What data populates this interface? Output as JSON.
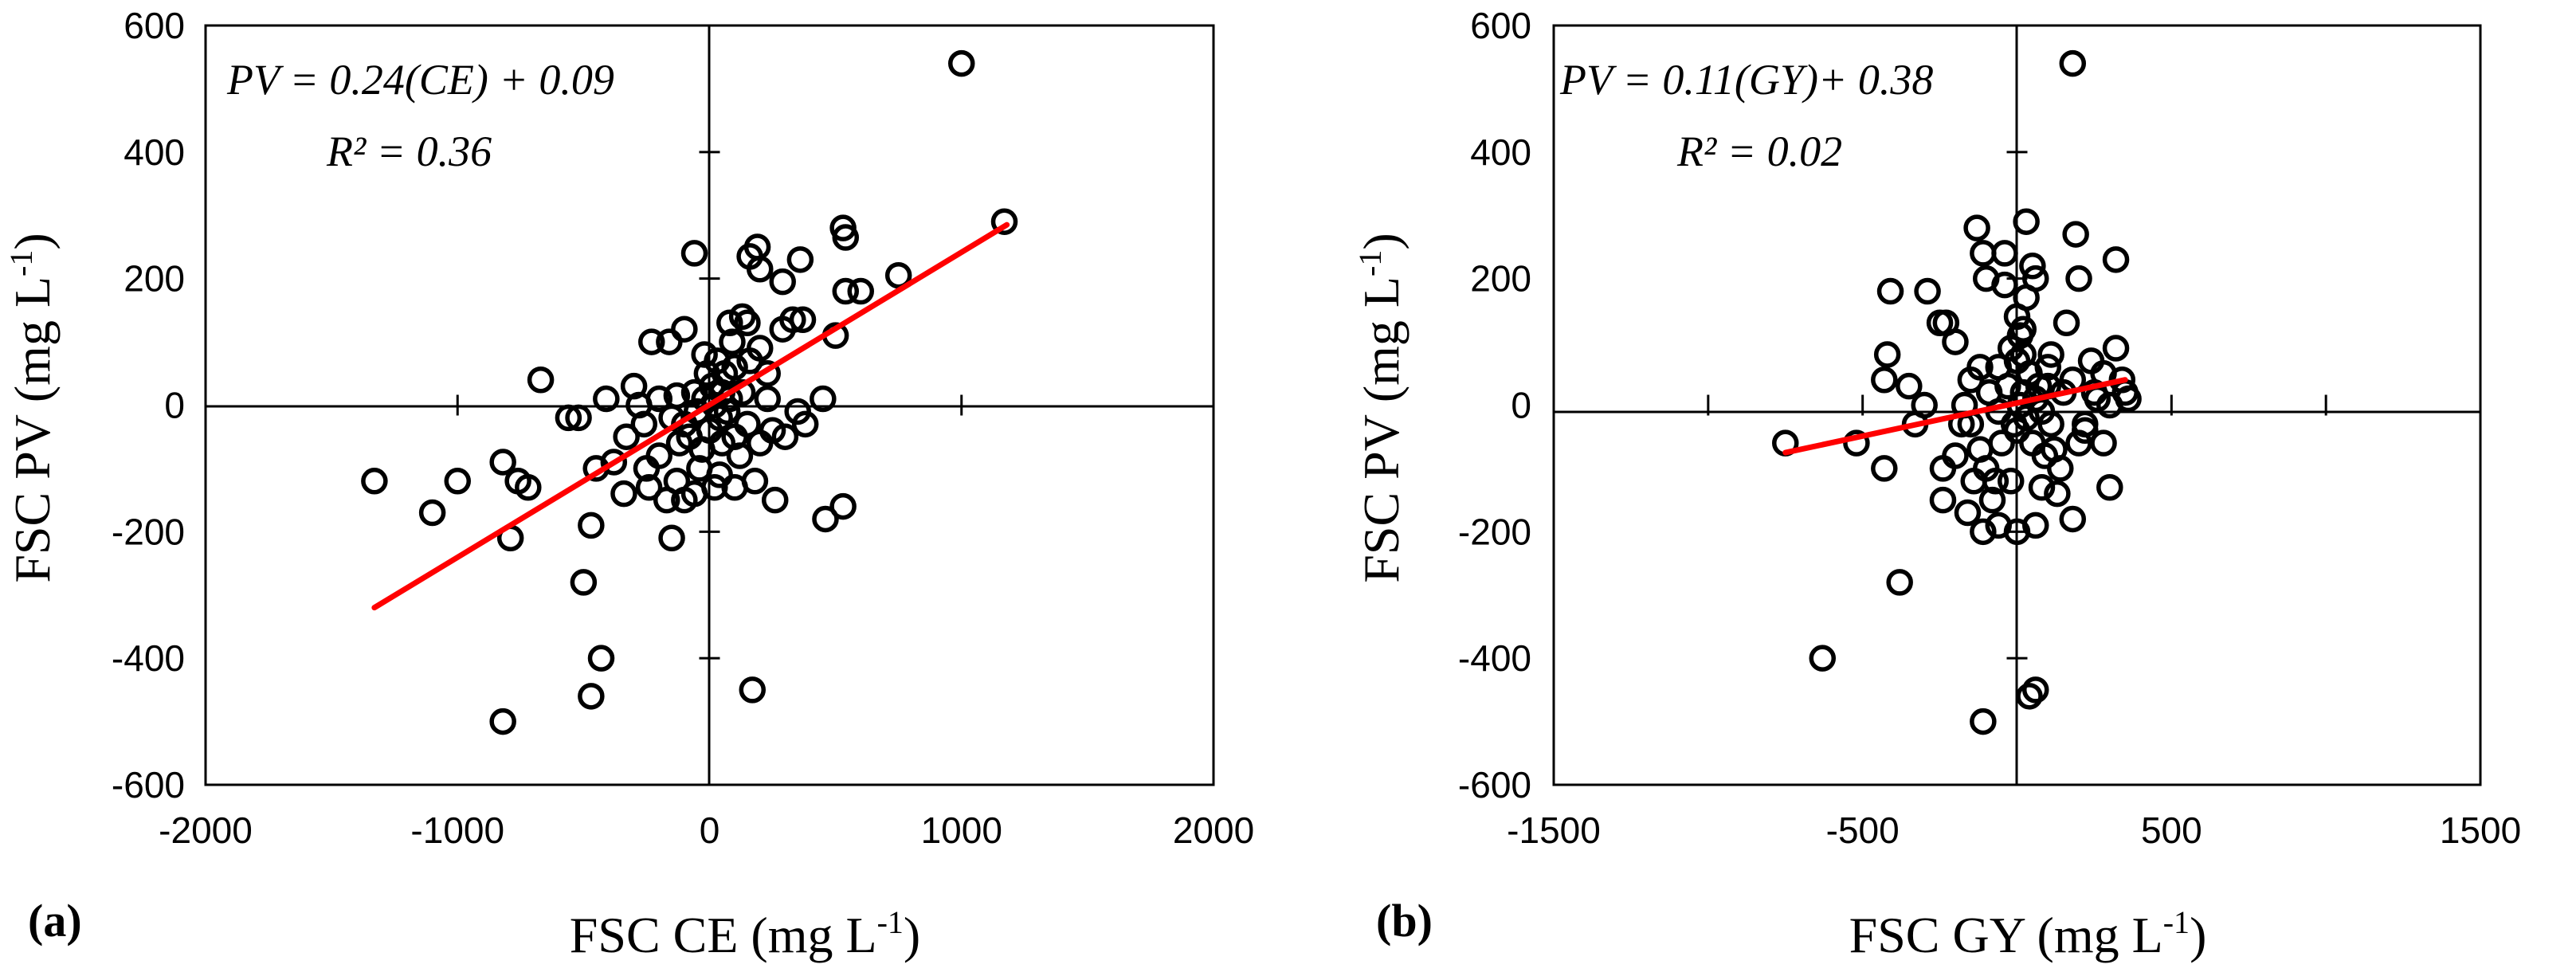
{
  "chart_data": [
    {
      "type": "scatter",
      "panel_label": "(a)",
      "xlabel": "FSC CE (mg L",
      "xlabel_sup": "-1",
      "xlabel_end": ")",
      "ylabel": "FSC PV (mg L",
      "ylabel_sup": "-1",
      "ylabel_end": ")",
      "xlim": [
        -2000,
        2000
      ],
      "ylim": [
        -600,
        600
      ],
      "x_ticks": [
        -2000,
        -1000,
        0,
        1000,
        2000
      ],
      "y_ticks": [
        -600,
        -400,
        -200,
        0,
        200,
        400,
        600
      ],
      "x_tick_labels": [
        "-2000",
        "-1000",
        "0",
        "1000",
        "2000"
      ],
      "y_tick_labels": [
        "-600",
        "-400",
        "-200",
        "0",
        "200",
        "400",
        "600"
      ],
      "equation": "PV = 0.24(CE) + 0.09",
      "r2_text": "R² = 0.36",
      "trendline": {
        "x": [
          -1330,
          1180
        ],
        "y": [
          -320,
          285
        ],
        "color": "#ff0000"
      },
      "points": [
        [
          1000,
          540
        ],
        [
          1170,
          290
        ],
        [
          530,
          280
        ],
        [
          540,
          265
        ],
        [
          750,
          205
        ],
        [
          600,
          180
        ],
        [
          540,
          180
        ],
        [
          500,
          110
        ],
        [
          -60,
          240
        ],
        [
          190,
          250
        ],
        [
          160,
          235
        ],
        [
          360,
          230
        ],
        [
          200,
          215
        ],
        [
          290,
          195
        ],
        [
          330,
          135
        ],
        [
          370,
          135
        ],
        [
          290,
          120
        ],
        [
          80,
          130
        ],
        [
          130,
          140
        ],
        [
          150,
          130
        ],
        [
          -230,
          100
        ],
        [
          -160,
          100
        ],
        [
          -100,
          120
        ],
        [
          -20,
          80
        ],
        [
          30,
          70
        ],
        [
          60,
          50
        ],
        [
          100,
          60
        ],
        [
          200,
          90
        ],
        [
          230,
          50
        ],
        [
          50,
          20
        ],
        [
          20,
          0
        ],
        [
          -20,
          10
        ],
        [
          80,
          10
        ],
        [
          130,
          20
        ],
        [
          -50,
          -10
        ],
        [
          -100,
          -30
        ],
        [
          -130,
          15
        ],
        [
          -200,
          10
        ],
        [
          -150,
          -20
        ],
        [
          -80,
          -50
        ],
        [
          0,
          -40
        ],
        [
          50,
          -60
        ],
        [
          100,
          -50
        ],
        [
          -30,
          -70
        ],
        [
          150,
          -30
        ],
        [
          200,
          -60
        ],
        [
          250,
          -40
        ],
        [
          -260,
          -30
        ],
        [
          -280,
          0
        ],
        [
          -410,
          10
        ],
        [
          -330,
          -50
        ],
        [
          -380,
          -90
        ],
        [
          -450,
          -100
        ],
        [
          -520,
          -20
        ],
        [
          -560,
          -20
        ],
        [
          -670,
          40
        ],
        [
          -720,
          -130
        ],
        [
          -760,
          -120
        ],
        [
          -820,
          -90
        ],
        [
          -1330,
          -120
        ],
        [
          -1000,
          -120
        ],
        [
          -1100,
          -170
        ],
        [
          -790,
          -210
        ],
        [
          -470,
          -190
        ],
        [
          -340,
          -140
        ],
        [
          -240,
          -130
        ],
        [
          -170,
          -150
        ],
        [
          -130,
          -120
        ],
        [
          -150,
          -210
        ],
        [
          -100,
          -150
        ],
        [
          -60,
          -140
        ],
        [
          40,
          -110
        ],
        [
          100,
          -130
        ],
        [
          180,
          -120
        ],
        [
          260,
          -150
        ],
        [
          350,
          -10
        ],
        [
          380,
          -30
        ],
        [
          450,
          10
        ],
        [
          460,
          -180
        ],
        [
          530,
          -160
        ],
        [
          -500,
          -280
        ],
        [
          -430,
          -400
        ],
        [
          -470,
          -460
        ],
        [
          -820,
          -500
        ],
        [
          170,
          -450
        ],
        [
          10,
          30
        ],
        [
          -10,
          50
        ],
        [
          40,
          -20
        ],
        [
          -60,
          20
        ],
        [
          70,
          -10
        ],
        [
          120,
          -80
        ],
        [
          -120,
          -60
        ],
        [
          90,
          100
        ],
        [
          160,
          70
        ],
        [
          -40,
          -100
        ],
        [
          20,
          -130
        ],
        [
          -200,
          -80
        ],
        [
          300,
          -50
        ],
        [
          230,
          10
        ],
        [
          -300,
          30
        ],
        [
          -250,
          -100
        ]
      ]
    },
    {
      "type": "scatter",
      "panel_label": "(b)",
      "xlabel": "FSC GY (mg L",
      "xlabel_sup": "-1",
      "xlabel_end": ")",
      "ylabel": "FSC PV (mg L",
      "ylabel_sup": "-1",
      "ylabel_end": ")",
      "xlim": [
        -1500,
        1500
      ],
      "ylim": [
        -600,
        600
      ],
      "x_ticks": [
        -1500,
        -500,
        500,
        1500
      ],
      "y_ticks": [
        -600,
        -400,
        -200,
        0,
        200,
        400,
        600
      ],
      "x_tick_labels": [
        "-1500",
        "-500",
        "500",
        "1500"
      ],
      "y_tick_labels": [
        "-600",
        "-400",
        "-200",
        "0",
        "200",
        "400",
        "600"
      ],
      "minor_x_ticks": [
        -1000,
        1000
      ],
      "equation": "PV = 0.11(GY)+ 0.38",
      "r2_text": "R² = 0.02",
      "trendline": {
        "x": [
          -750,
          350
        ],
        "y": [
          -75,
          40
        ],
        "color": "#ff0000"
      },
      "points": [
        [
          180,
          540
        ],
        [
          -630,
          -400
        ],
        [
          -750,
          -60
        ],
        [
          -520,
          -60
        ],
        [
          -420,
          80
        ],
        [
          -430,
          40
        ],
        [
          -430,
          -100
        ],
        [
          -410,
          180
        ],
        [
          -380,
          -280
        ],
        [
          -330,
          -30
        ],
        [
          -350,
          30
        ],
        [
          -300,
          0
        ],
        [
          -290,
          180
        ],
        [
          -250,
          130
        ],
        [
          -230,
          130
        ],
        [
          -240,
          -100
        ],
        [
          -240,
          -150
        ],
        [
          -200,
          100
        ],
        [
          -170,
          0
        ],
        [
          -150,
          -30
        ],
        [
          -140,
          -120
        ],
        [
          -120,
          60
        ],
        [
          -130,
          280
        ],
        [
          -110,
          240
        ],
        [
          -100,
          200
        ],
        [
          -80,
          -150
        ],
        [
          -60,
          -190
        ],
        [
          -40,
          190
        ],
        [
          -40,
          240
        ],
        [
          -20,
          -120
        ],
        [
          0,
          -40
        ],
        [
          10,
          0
        ],
        [
          20,
          80
        ],
        [
          20,
          120
        ],
        [
          30,
          170
        ],
        [
          30,
          290
        ],
        [
          50,
          220
        ],
        [
          60,
          200
        ],
        [
          60,
          10
        ],
        [
          50,
          -60
        ],
        [
          80,
          -10
        ],
        [
          100,
          60
        ],
        [
          100,
          30
        ],
        [
          110,
          -30
        ],
        [
          120,
          -70
        ],
        [
          140,
          -100
        ],
        [
          160,
          130
        ],
        [
          180,
          40
        ],
        [
          190,
          270
        ],
        [
          200,
          200
        ],
        [
          200,
          -60
        ],
        [
          220,
          -40
        ],
        [
          250,
          20
        ],
        [
          260,
          10
        ],
        [
          280,
          50
        ],
        [
          300,
          0
        ],
        [
          320,
          230
        ],
        [
          320,
          90
        ],
        [
          340,
          40
        ],
        [
          350,
          20
        ],
        [
          360,
          10
        ],
        [
          -100,
          -100
        ],
        [
          -70,
          -120
        ],
        [
          -60,
          60
        ],
        [
          -20,
          90
        ],
        [
          0,
          140
        ],
        [
          10,
          110
        ],
        [
          40,
          50
        ],
        [
          -120,
          -70
        ],
        [
          -160,
          -170
        ],
        [
          -110,
          -200
        ],
        [
          0,
          -200
        ],
        [
          60,
          -190
        ],
        [
          80,
          -130
        ],
        [
          130,
          -140
        ],
        [
          180,
          -180
        ],
        [
          220,
          -30
        ],
        [
          280,
          -60
        ],
        [
          300,
          -130
        ],
        [
          -90,
          20
        ],
        [
          -30,
          30
        ],
        [
          0,
          70
        ],
        [
          30,
          -20
        ],
        [
          70,
          30
        ],
        [
          90,
          -80
        ],
        [
          -150,
          40
        ],
        [
          -180,
          -30
        ],
        [
          -50,
          -60
        ],
        [
          -110,
          -500
        ],
        [
          40,
          -460
        ],
        [
          60,
          -450
        ],
        [
          -200,
          -80
        ],
        [
          240,
          70
        ],
        [
          -60,
          -10
        ],
        [
          110,
          80
        ],
        [
          20,
          20
        ],
        [
          -10,
          -30
        ],
        [
          150,
          20
        ]
      ]
    }
  ]
}
